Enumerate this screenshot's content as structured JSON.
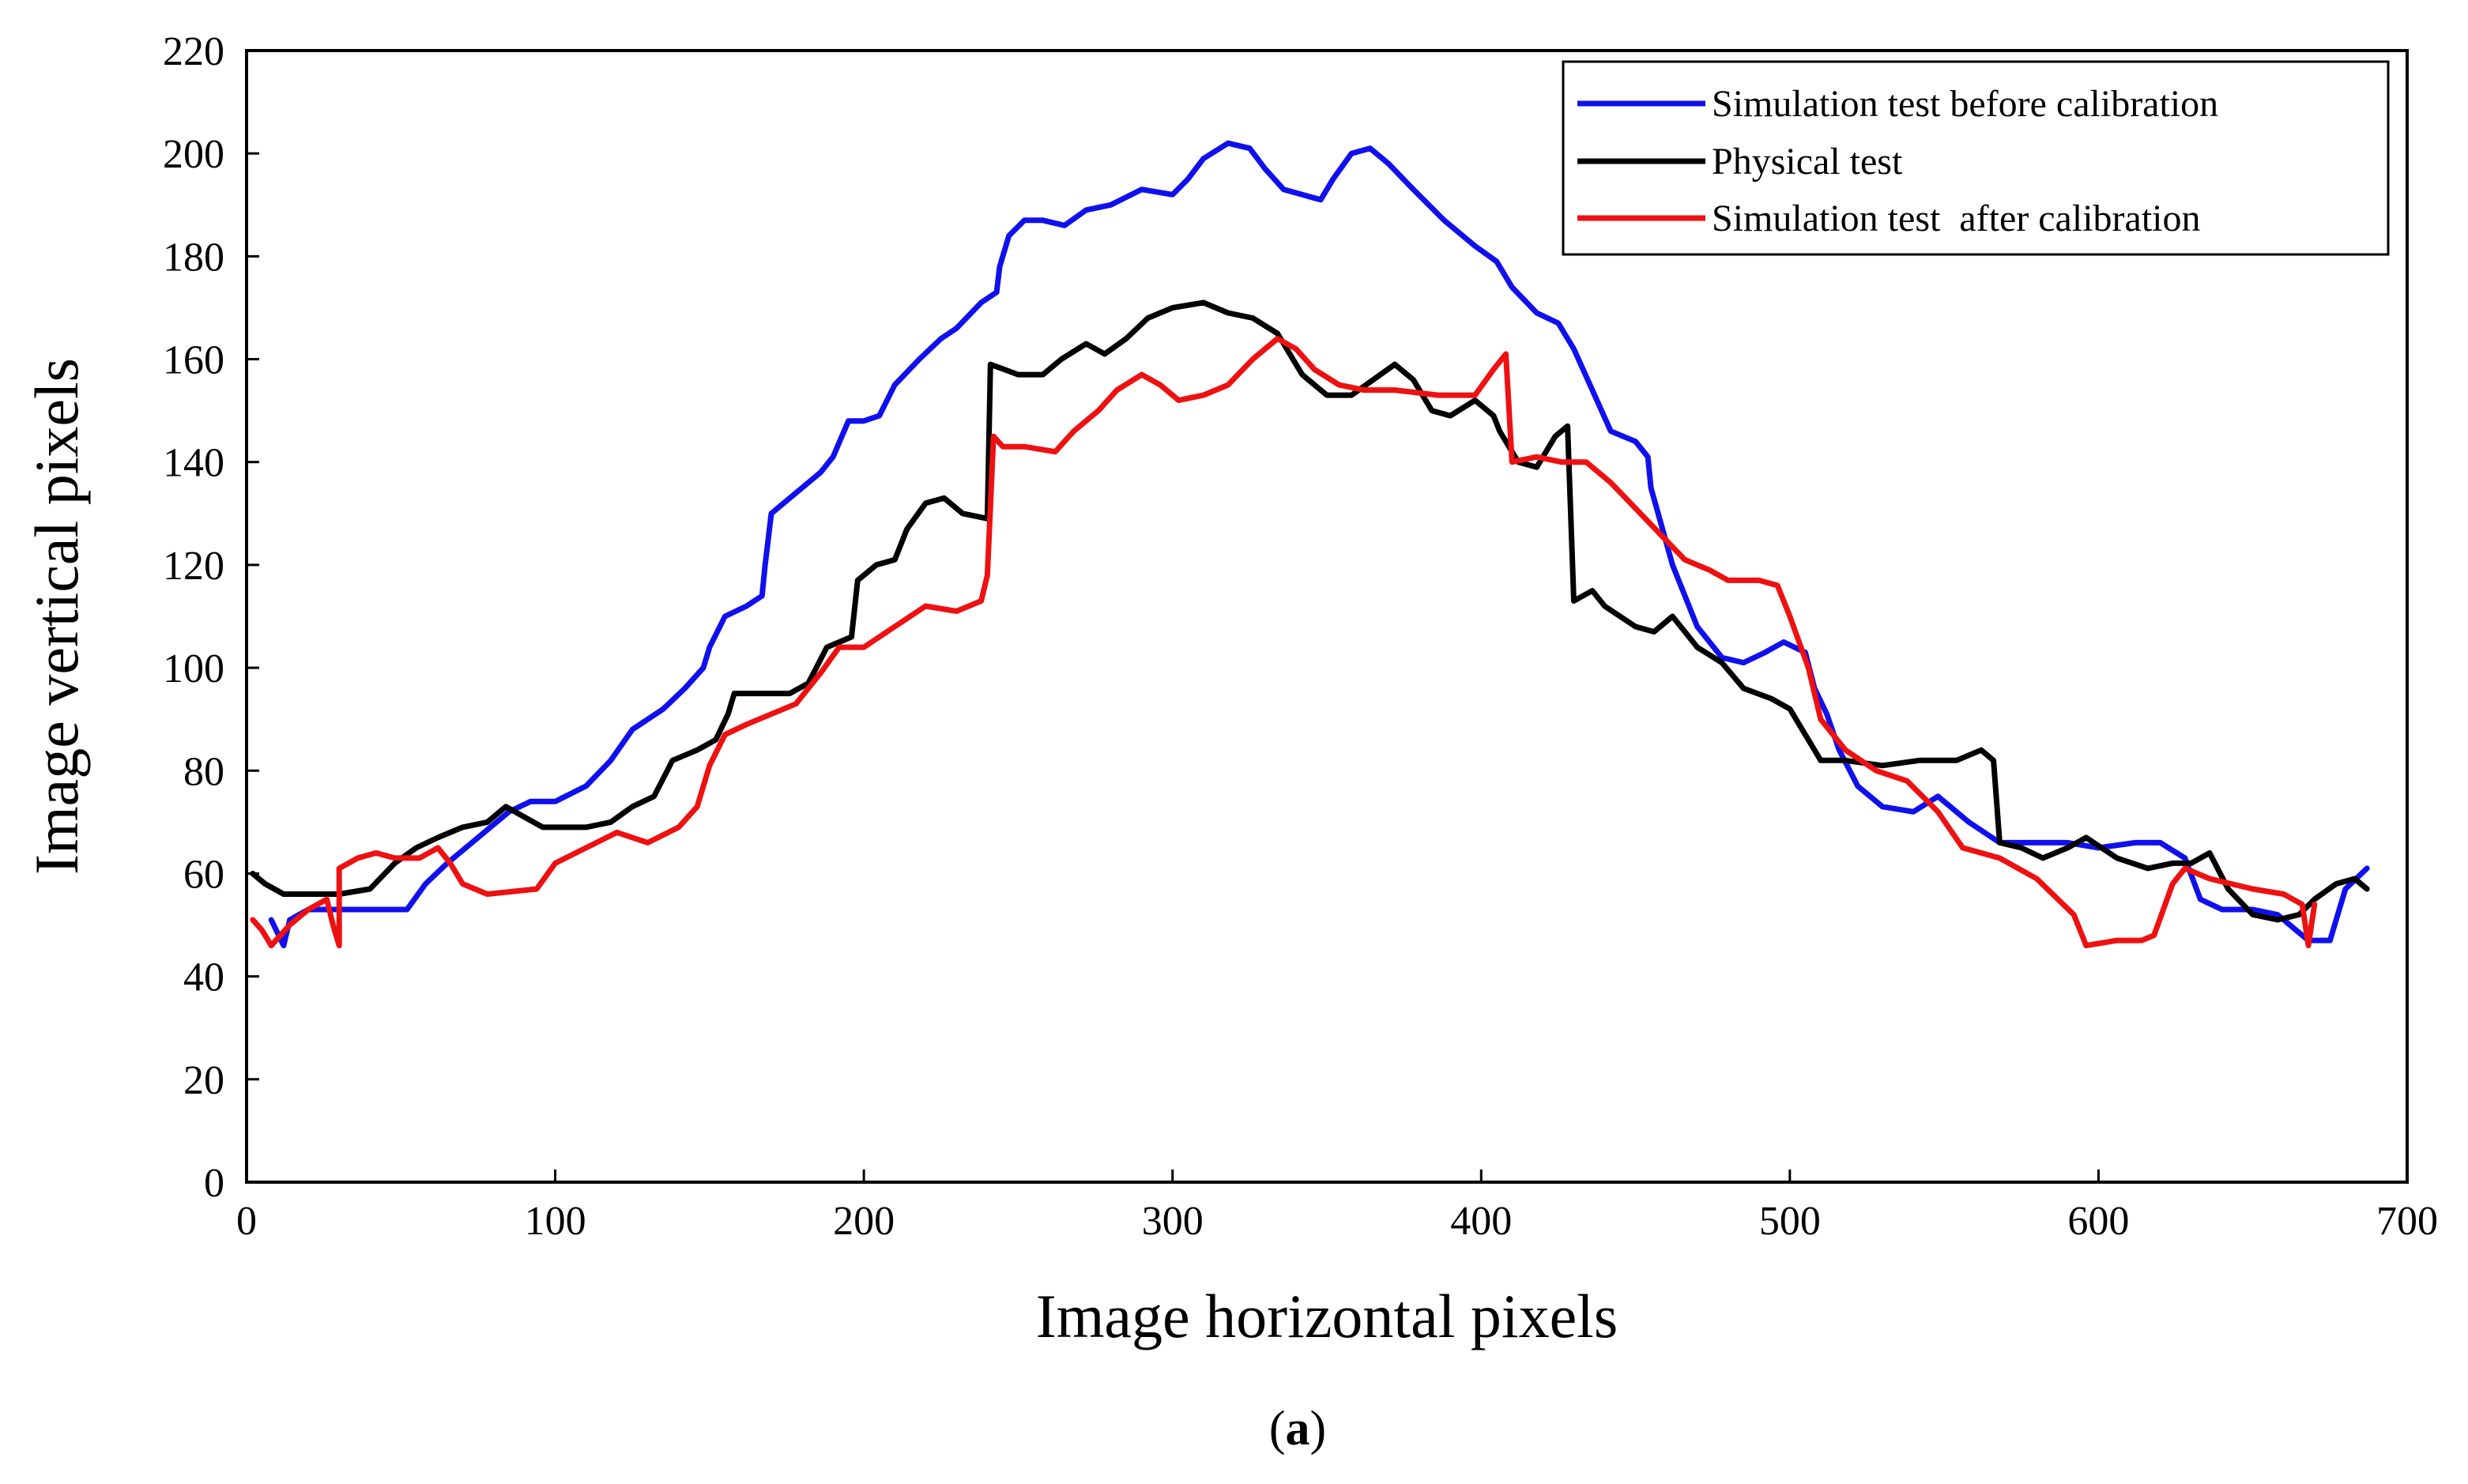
{
  "chart_data": {
    "type": "line",
    "panel_label": {
      "open": "(",
      "letter": "a",
      "close": ")"
    },
    "xlabel": "Image horizontal pixels",
    "ylabel": "Image vertical pixels",
    "xlim": [
      0,
      700
    ],
    "ylim": [
      0,
      220
    ],
    "xticks": [
      0,
      100,
      200,
      300,
      400,
      500,
      600,
      700
    ],
    "yticks": [
      0,
      20,
      40,
      60,
      80,
      100,
      120,
      140,
      160,
      180,
      200,
      220
    ],
    "grid": false,
    "legend_position": "top-right",
    "series": [
      {
        "name": "Simulation test before calibration",
        "color": "#1010ee",
        "points": [
          [
            8,
            51
          ],
          [
            12,
            46
          ],
          [
            14,
            51
          ],
          [
            20,
            53
          ],
          [
            30,
            53
          ],
          [
            40,
            53
          ],
          [
            52,
            53
          ],
          [
            58,
            58
          ],
          [
            65,
            62
          ],
          [
            75,
            67
          ],
          [
            85,
            72
          ],
          [
            92,
            74
          ],
          [
            100,
            74
          ],
          [
            110,
            77
          ],
          [
            118,
            82
          ],
          [
            125,
            88
          ],
          [
            135,
            92
          ],
          [
            142,
            96
          ],
          [
            148,
            100
          ],
          [
            150,
            104
          ],
          [
            155,
            110
          ],
          [
            162,
            112
          ],
          [
            167,
            114
          ],
          [
            168,
            120
          ],
          [
            170,
            130
          ],
          [
            178,
            134
          ],
          [
            186,
            138
          ],
          [
            190,
            141
          ],
          [
            195,
            148
          ],
          [
            200,
            148
          ],
          [
            205,
            149
          ],
          [
            210,
            155
          ],
          [
            218,
            160
          ],
          [
            225,
            164
          ],
          [
            230,
            166
          ],
          [
            238,
            171
          ],
          [
            243,
            173
          ],
          [
            244,
            178
          ],
          [
            247,
            184
          ],
          [
            252,
            187
          ],
          [
            258,
            187
          ],
          [
            265,
            186
          ],
          [
            272,
            189
          ],
          [
            280,
            190
          ],
          [
            290,
            193
          ],
          [
            300,
            192
          ],
          [
            305,
            195
          ],
          [
            310,
            199
          ],
          [
            318,
            202
          ],
          [
            325,
            201
          ],
          [
            330,
            197
          ],
          [
            336,
            193
          ],
          [
            342,
            192
          ],
          [
            348,
            191
          ],
          [
            352,
            195
          ],
          [
            358,
            200
          ],
          [
            364,
            201
          ],
          [
            370,
            198
          ],
          [
            378,
            193
          ],
          [
            388,
            187
          ],
          [
            398,
            182
          ],
          [
            405,
            179
          ],
          [
            410,
            174
          ],
          [
            418,
            169
          ],
          [
            425,
            167
          ],
          [
            430,
            162
          ],
          [
            436,
            154
          ],
          [
            442,
            146
          ],
          [
            450,
            144
          ],
          [
            454,
            141
          ],
          [
            455,
            135
          ],
          [
            462,
            120
          ],
          [
            470,
            108
          ],
          [
            478,
            102
          ],
          [
            485,
            101
          ],
          [
            492,
            103
          ],
          [
            498,
            105
          ],
          [
            505,
            103
          ],
          [
            508,
            96
          ],
          [
            512,
            91
          ],
          [
            516,
            84
          ],
          [
            522,
            77
          ],
          [
            530,
            73
          ],
          [
            540,
            72
          ],
          [
            548,
            75
          ],
          [
            558,
            70
          ],
          [
            568,
            66
          ],
          [
            578,
            66
          ],
          [
            590,
            66
          ],
          [
            600,
            65
          ],
          [
            612,
            66
          ],
          [
            620,
            66
          ],
          [
            628,
            63
          ],
          [
            633,
            55
          ],
          [
            640,
            53
          ],
          [
            650,
            53
          ],
          [
            658,
            52
          ],
          [
            664,
            49
          ],
          [
            668,
            47
          ],
          [
            675,
            47
          ],
          [
            680,
            57
          ],
          [
            687,
            61
          ]
        ]
      },
      {
        "name": "Physical test",
        "color": "#000000",
        "points": [
          [
            2,
            60
          ],
          [
            6,
            58
          ],
          [
            12,
            56
          ],
          [
            20,
            56
          ],
          [
            30,
            56
          ],
          [
            40,
            57
          ],
          [
            48,
            62
          ],
          [
            55,
            65
          ],
          [
            62,
            67
          ],
          [
            70,
            69
          ],
          [
            78,
            70
          ],
          [
            84,
            73
          ],
          [
            90,
            71
          ],
          [
            96,
            69
          ],
          [
            110,
            69
          ],
          [
            118,
            70
          ],
          [
            125,
            73
          ],
          [
            132,
            75
          ],
          [
            138,
            82
          ],
          [
            146,
            84
          ],
          [
            152,
            86
          ],
          [
            156,
            91
          ],
          [
            158,
            95
          ],
          [
            176,
            95
          ],
          [
            182,
            97
          ],
          [
            188,
            104
          ],
          [
            196,
            106
          ],
          [
            198,
            117
          ],
          [
            204,
            120
          ],
          [
            210,
            121
          ],
          [
            214,
            127
          ],
          [
            220,
            132
          ],
          [
            226,
            133
          ],
          [
            232,
            130
          ],
          [
            240,
            129
          ],
          [
            241,
            159
          ],
          [
            250,
            157
          ],
          [
            258,
            157
          ],
          [
            264,
            160
          ],
          [
            272,
            163
          ],
          [
            278,
            161
          ],
          [
            285,
            164
          ],
          [
            292,
            168
          ],
          [
            300,
            170
          ],
          [
            310,
            171
          ],
          [
            318,
            169
          ],
          [
            326,
            168
          ],
          [
            334,
            165
          ],
          [
            342,
            157
          ],
          [
            350,
            153
          ],
          [
            358,
            153
          ],
          [
            365,
            156
          ],
          [
            372,
            159
          ],
          [
            378,
            156
          ],
          [
            384,
            150
          ],
          [
            390,
            149
          ],
          [
            398,
            152
          ],
          [
            404,
            149
          ],
          [
            406,
            146
          ],
          [
            412,
            140
          ],
          [
            418,
            139
          ],
          [
            424,
            145
          ],
          [
            428,
            147
          ],
          [
            430,
            113
          ],
          [
            436,
            115
          ],
          [
            440,
            112
          ],
          [
            450,
            108
          ],
          [
            456,
            107
          ],
          [
            462,
            110
          ],
          [
            470,
            104
          ],
          [
            478,
            101
          ],
          [
            485,
            96
          ],
          [
            494,
            94
          ],
          [
            500,
            92
          ],
          [
            506,
            86
          ],
          [
            510,
            82
          ],
          [
            518,
            82
          ],
          [
            530,
            81
          ],
          [
            542,
            82
          ],
          [
            554,
            82
          ],
          [
            562,
            84
          ],
          [
            566,
            82
          ],
          [
            568,
            66
          ],
          [
            575,
            65
          ],
          [
            582,
            63
          ],
          [
            590,
            65
          ],
          [
            596,
            67
          ],
          [
            606,
            63
          ],
          [
            616,
            61
          ],
          [
            624,
            62
          ],
          [
            630,
            62
          ],
          [
            636,
            64
          ],
          [
            642,
            57
          ],
          [
            650,
            52
          ],
          [
            658,
            51
          ],
          [
            665,
            52
          ],
          [
            670,
            55
          ],
          [
            677,
            58
          ],
          [
            683,
            59
          ],
          [
            687,
            57
          ]
        ]
      },
      {
        "name": "Simulation test  after calibration",
        "color": "#ee1111",
        "points": [
          [
            2,
            51
          ],
          [
            5,
            49
          ],
          [
            8,
            46
          ],
          [
            14,
            50
          ],
          [
            20,
            53
          ],
          [
            26,
            55
          ],
          [
            28,
            50
          ],
          [
            30,
            46
          ],
          [
            30,
            61
          ],
          [
            36,
            63
          ],
          [
            42,
            64
          ],
          [
            48,
            63
          ],
          [
            56,
            63
          ],
          [
            62,
            65
          ],
          [
            66,
            62
          ],
          [
            70,
            58
          ],
          [
            78,
            56
          ],
          [
            94,
            57
          ],
          [
            100,
            62
          ],
          [
            110,
            65
          ],
          [
            120,
            68
          ],
          [
            130,
            66
          ],
          [
            140,
            69
          ],
          [
            146,
            73
          ],
          [
            150,
            81
          ],
          [
            155,
            87
          ],
          [
            162,
            89
          ],
          [
            170,
            91
          ],
          [
            178,
            93
          ],
          [
            186,
            99
          ],
          [
            192,
            104
          ],
          [
            200,
            104
          ],
          [
            205,
            106
          ],
          [
            210,
            108
          ],
          [
            220,
            112
          ],
          [
            230,
            111
          ],
          [
            238,
            113
          ],
          [
            240,
            118
          ],
          [
            242,
            145
          ],
          [
            245,
            143
          ],
          [
            252,
            143
          ],
          [
            262,
            142
          ],
          [
            268,
            146
          ],
          [
            276,
            150
          ],
          [
            282,
            154
          ],
          [
            290,
            157
          ],
          [
            296,
            155
          ],
          [
            302,
            152
          ],
          [
            310,
            153
          ],
          [
            318,
            155
          ],
          [
            326,
            160
          ],
          [
            334,
            164
          ],
          [
            340,
            162
          ],
          [
            346,
            158
          ],
          [
            354,
            155
          ],
          [
            362,
            154
          ],
          [
            372,
            154
          ],
          [
            386,
            153
          ],
          [
            398,
            153
          ],
          [
            404,
            158
          ],
          [
            408,
            161
          ],
          [
            410,
            140
          ],
          [
            418,
            141
          ],
          [
            426,
            140
          ],
          [
            434,
            140
          ],
          [
            442,
            136
          ],
          [
            450,
            131
          ],
          [
            458,
            126
          ],
          [
            466,
            121
          ],
          [
            474,
            119
          ],
          [
            480,
            117
          ],
          [
            490,
            117
          ],
          [
            496,
            116
          ],
          [
            500,
            110
          ],
          [
            506,
            100
          ],
          [
            510,
            90
          ],
          [
            518,
            84
          ],
          [
            528,
            80
          ],
          [
            538,
            78
          ],
          [
            548,
            72
          ],
          [
            556,
            65
          ],
          [
            568,
            63
          ],
          [
            580,
            59
          ],
          [
            592,
            52
          ],
          [
            596,
            46
          ],
          [
            606,
            47
          ],
          [
            614,
            47
          ],
          [
            618,
            48
          ],
          [
            624,
            58
          ],
          [
            628,
            61
          ],
          [
            636,
            59
          ],
          [
            650,
            57
          ],
          [
            660,
            56
          ],
          [
            666,
            54
          ],
          [
            668,
            46
          ],
          [
            670,
            54
          ]
        ]
      }
    ]
  }
}
